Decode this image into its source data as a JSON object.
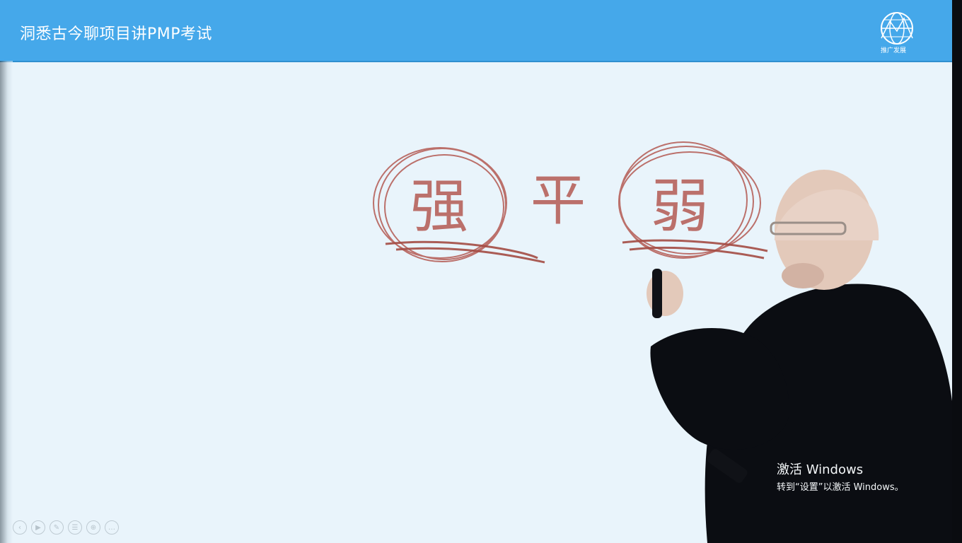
{
  "slide": {
    "title": "洞悉古今聊项目讲PMP考试",
    "logo_caption": "推广发展"
  },
  "whiteboard": {
    "characters": [
      "强",
      "平",
      "弱"
    ]
  },
  "activation_watermark": {
    "title": "激活 Windows",
    "subtitle": "转到“设置”以激活 Windows。"
  },
  "player_controls": {
    "icons": [
      "prev-icon",
      "play-icon",
      "pen-icon",
      "settings-icon",
      "zoom-icon",
      "more-icon"
    ]
  },
  "colors": {
    "header_blue": "#45a8ea",
    "slide_bg": "#e9f4fb",
    "ink_red": "#b45a52"
  }
}
